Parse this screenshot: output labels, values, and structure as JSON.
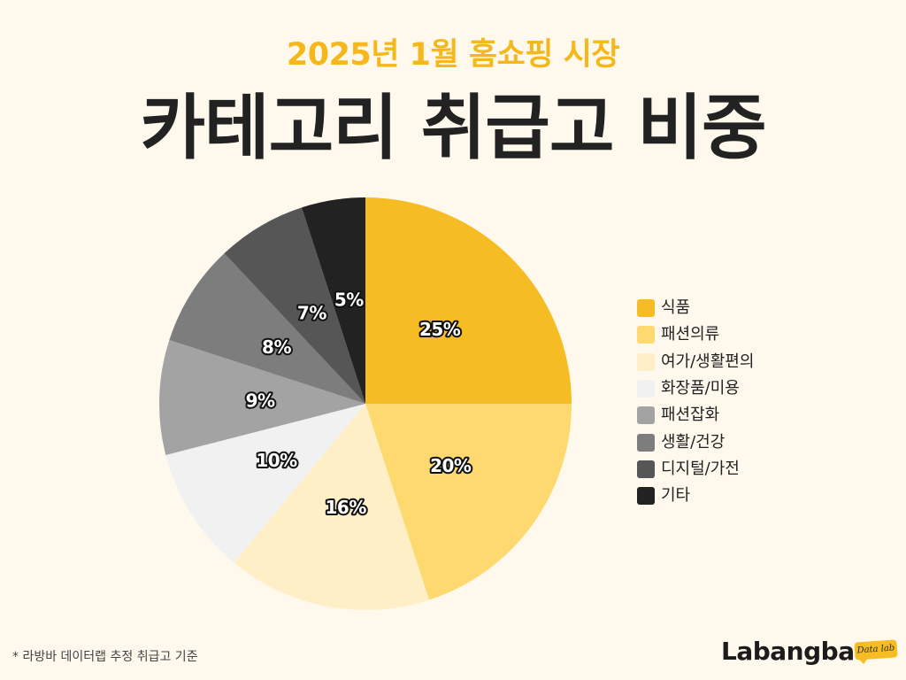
{
  "header": {
    "subtitle": "2025년 1월 홈쇼핑 시장",
    "title": "카테고리 취급고 비중"
  },
  "chart_data": {
    "type": "pie",
    "categories": [
      "식품",
      "패션의류",
      "여가/생활편의",
      "화장품/미용",
      "패션잡화",
      "생활/건강",
      "디지털/가전",
      "기타"
    ],
    "values": [
      25,
      20,
      16,
      10,
      9,
      8,
      7,
      5
    ],
    "data_labels": [
      "25%",
      "20%",
      "16%",
      "10%",
      "9%",
      "8%",
      "7%",
      "5%"
    ],
    "colors": [
      "#F5BC23",
      "#FDD970",
      "#FEEFC6",
      "#F1F1F1",
      "#A3A3A3",
      "#7D7D7D",
      "#565656",
      "#222222"
    ],
    "legend_position": "right",
    "start": "top, clockwise"
  },
  "footer": {
    "note": "* 라방바 데이터랩 추정 취급고 기준"
  },
  "brand": {
    "name": "Labangba",
    "tag": "Data lab"
  },
  "colors": {
    "background": "#FEF9EC",
    "accent": "#F5B81C",
    "text": "#222222"
  }
}
